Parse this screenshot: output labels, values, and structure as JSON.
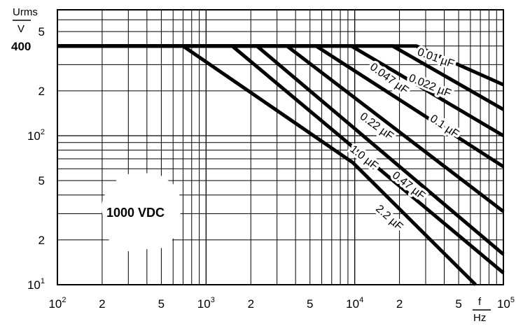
{
  "chart_data": {
    "type": "line",
    "x_scale": "log",
    "y_scale": "log",
    "xlim": [
      100,
      100000
    ],
    "ylim": [
      10,
      700
    ],
    "grid": true,
    "y_unit_top": "Urms",
    "y_unit_bottom": "V",
    "x_unit_top": "f",
    "x_unit_bottom": "Hz",
    "y_highlight_label": "400",
    "badge": "1000 VDC",
    "x_ticks": [
      {
        "value": 100,
        "base": "10",
        "exp": "2"
      },
      {
        "value": 200,
        "base": "2",
        "exp": ""
      },
      {
        "value": 500,
        "base": "5",
        "exp": ""
      },
      {
        "value": 1000,
        "base": "10",
        "exp": "3"
      },
      {
        "value": 2000,
        "base": "2",
        "exp": ""
      },
      {
        "value": 5000,
        "base": "5",
        "exp": ""
      },
      {
        "value": 10000,
        "base": "10",
        "exp": "4"
      },
      {
        "value": 20000,
        "base": "2",
        "exp": ""
      },
      {
        "value": 50000,
        "base": "5",
        "exp": ""
      },
      {
        "value": 100000,
        "base": "10",
        "exp": "5"
      }
    ],
    "y_ticks": [
      {
        "value": 10,
        "base": "10",
        "exp": "1"
      },
      {
        "value": 20,
        "base": "2",
        "exp": ""
      },
      {
        "value": 50,
        "base": "5",
        "exp": ""
      },
      {
        "value": 100,
        "base": "10",
        "exp": "2"
      },
      {
        "value": 200,
        "base": "2",
        "exp": ""
      },
      {
        "value": 500,
        "base": "5",
        "exp": ""
      }
    ],
    "series": [
      {
        "name": "0.01 µF",
        "points": [
          [
            100,
            400
          ],
          [
            26000,
            400
          ],
          [
            100000,
            220
          ]
        ]
      },
      {
        "name": "0.022 µF",
        "points": [
          [
            100,
            400
          ],
          [
            18000,
            400
          ],
          [
            100000,
            150
          ]
        ]
      },
      {
        "name": "0.047 µF",
        "points": [
          [
            100,
            400
          ],
          [
            9500,
            400
          ],
          [
            100000,
            100
          ]
        ]
      },
      {
        "name": "0.1 µF",
        "points": [
          [
            100,
            400
          ],
          [
            5500,
            400
          ],
          [
            100000,
            62
          ]
        ]
      },
      {
        "name": "0.22 µF",
        "points": [
          [
            100,
            400
          ],
          [
            3500,
            400
          ],
          [
            100000,
            31
          ]
        ]
      },
      {
        "name": "0.47 µF",
        "points": [
          [
            100,
            400
          ],
          [
            2200,
            400
          ],
          [
            100000,
            16
          ]
        ]
      },
      {
        "name": "1.0 µF",
        "points": [
          [
            100,
            400
          ],
          [
            1500,
            400
          ],
          [
            100000,
            12
          ]
        ]
      },
      {
        "name": "2.2 µF",
        "points": [
          [
            100,
            400
          ],
          [
            700,
            400
          ],
          [
            9700,
            66
          ],
          [
            65000,
            10
          ]
        ]
      }
    ],
    "labels": [
      {
        "text": "0.01 µF",
        "x": 35000,
        "y": 330,
        "angle": 20
      },
      {
        "text": "0.022 µF",
        "x": 32000,
        "y": 215,
        "angle": 22
      },
      {
        "text": "0.047 µF",
        "x": 17000,
        "y": 240,
        "angle": 36
      },
      {
        "text": "0.1 µF",
        "x": 40000,
        "y": 115,
        "angle": 34
      },
      {
        "text": "0.22 µF",
        "x": 14000,
        "y": 115,
        "angle": 36
      },
      {
        "text": "0.47 µF",
        "x": 23000,
        "y": 46,
        "angle": 38
      },
      {
        "text": "1.0 µF",
        "x": 11500,
        "y": 71,
        "angle": 38
      },
      {
        "text": "2.2 µF",
        "x": 17000,
        "y": 28,
        "angle": 42
      }
    ]
  }
}
